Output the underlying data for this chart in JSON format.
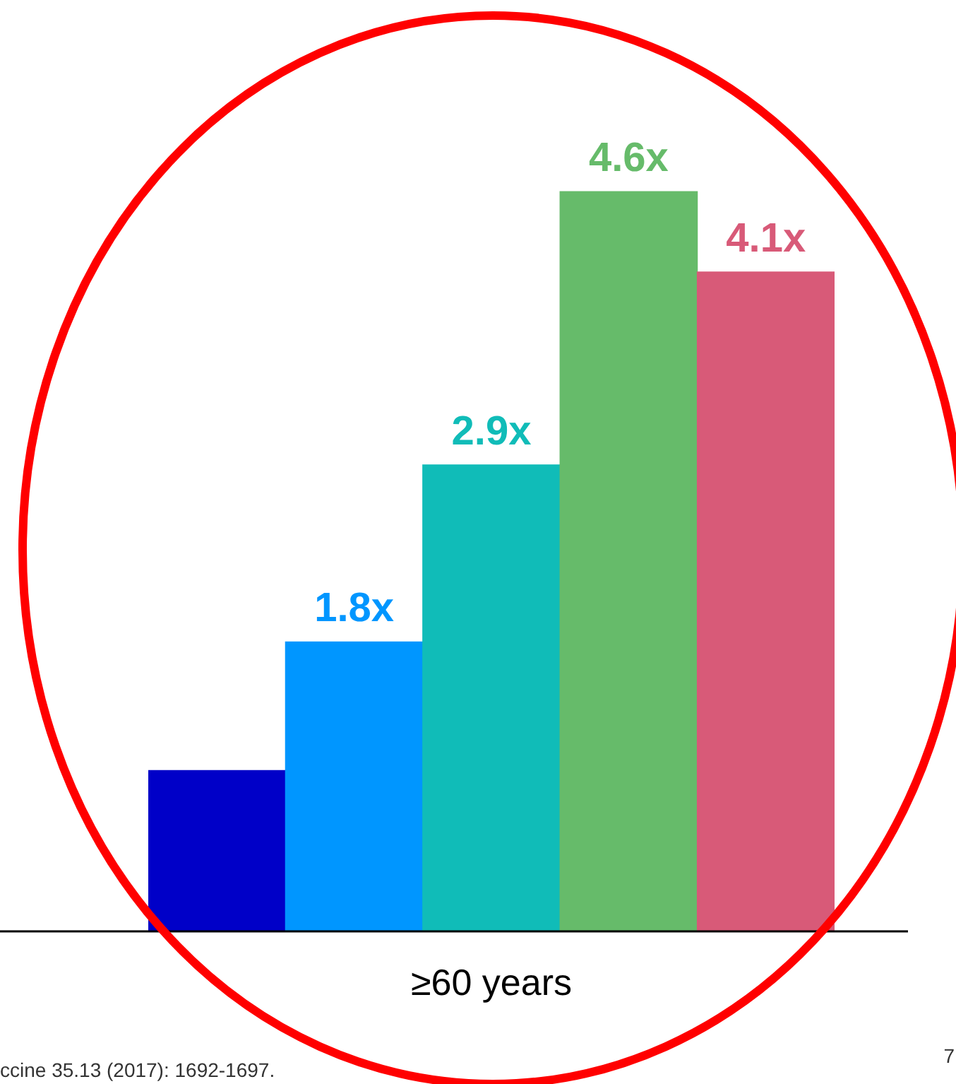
{
  "chart_data": {
    "type": "bar",
    "categories": [
      null,
      null,
      null,
      null,
      null
    ],
    "values": [
      1.0,
      1.8,
      2.9,
      4.6,
      4.1
    ],
    "colors": [
      "#0000c8",
      "#0096ff",
      "#10bcb8",
      "#66bb6a",
      "#d85a78"
    ],
    "value_labels": [
      null,
      "1.8x",
      "2.9x",
      "4.6x",
      "4.1x"
    ],
    "xlabel": "≥60 years",
    "tick_labels": false,
    "grid": false,
    "legend": false,
    "annotations": [
      "ccine 35.13 (2017): 1692-1697.",
      "7"
    ]
  }
}
